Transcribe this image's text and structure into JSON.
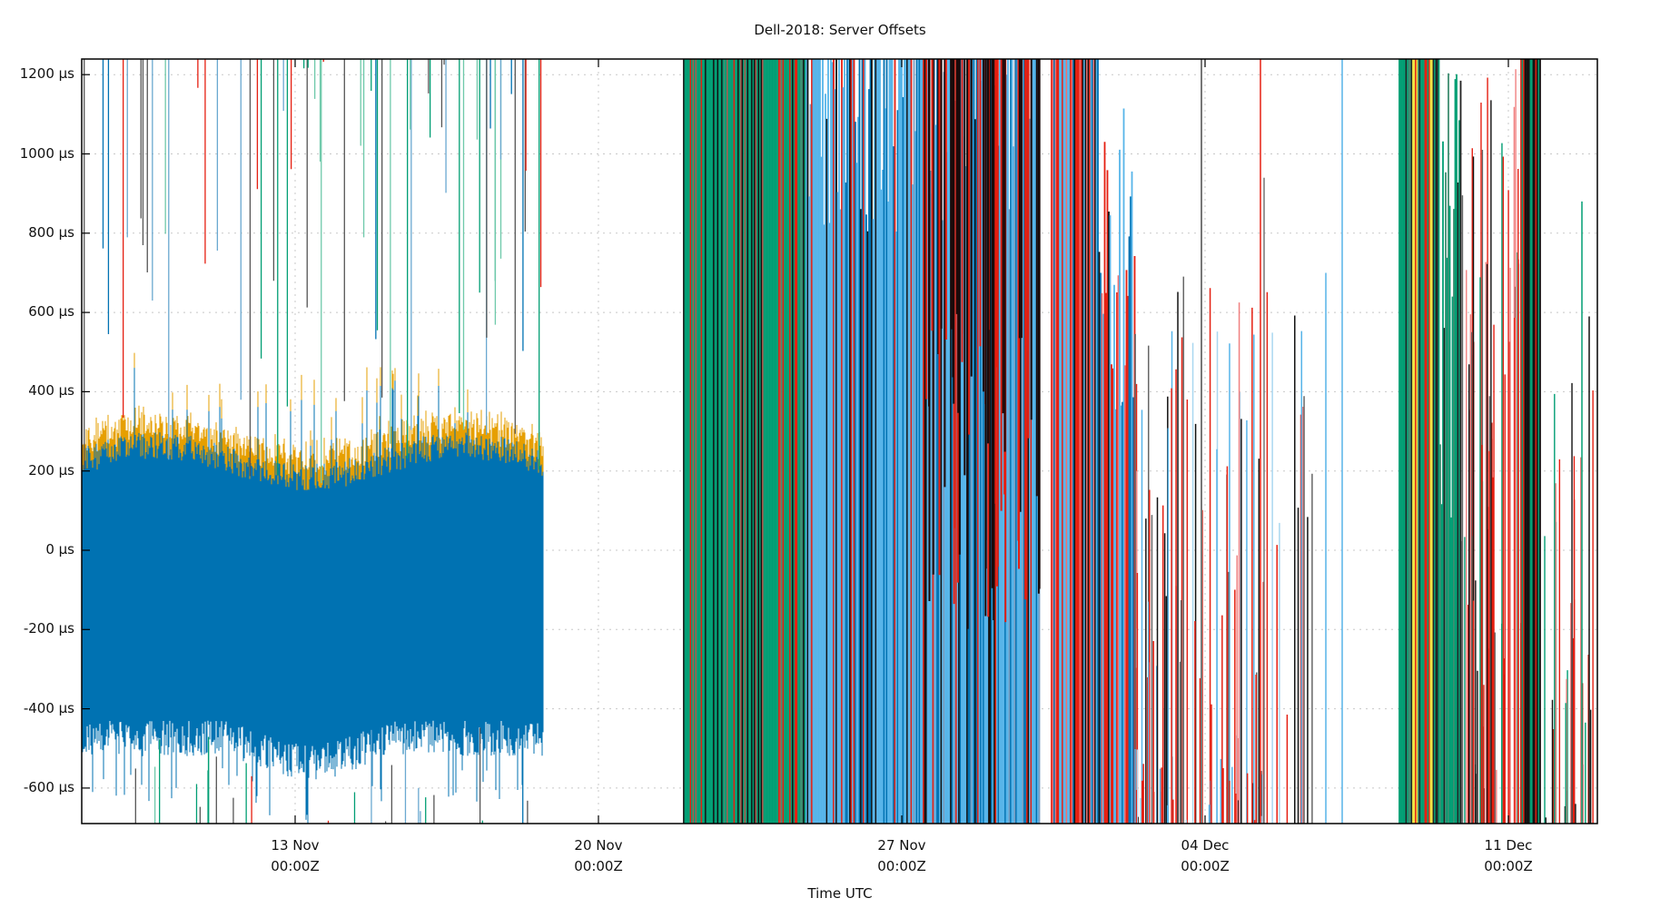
{
  "chart_data": {
    "type": "line",
    "title": "Dell-2018: Server Offsets",
    "xlabel": "Time UTC",
    "ylabel": "",
    "ylim": [
      -690,
      1240
    ],
    "y_unit": "µs",
    "y_ticks": [
      {
        "value": 1200,
        "label": "1200 µs"
      },
      {
        "value": 1000,
        "label": "1000 µs"
      },
      {
        "value": 800,
        "label": "800 µs"
      },
      {
        "value": 600,
        "label": "600 µs"
      },
      {
        "value": 400,
        "label": "400 µs"
      },
      {
        "value": 200,
        "label": "200 µs"
      },
      {
        "value": 0,
        "label": "0 µs"
      },
      {
        "value": -200,
        "label": "-200 µs"
      },
      {
        "value": -400,
        "label": "-400 µs"
      },
      {
        "value": -600,
        "label": "-600 µs"
      }
    ],
    "x_ticks": [
      {
        "date": "13 Nov",
        "time": "00:00Z"
      },
      {
        "date": "20 Nov",
        "time": "00:00Z"
      },
      {
        "date": "27 Nov",
        "time": "00:00Z"
      },
      {
        "date": "04 Dec",
        "time": "00:00Z"
      },
      {
        "date": "11 Dec",
        "time": "00:00Z"
      }
    ],
    "xlim": [
      "~09 Nov",
      "~14 Dec"
    ],
    "grid": true,
    "legend": "none",
    "series_colors": {
      "blue": "#0072b2",
      "orange": "#e69f00",
      "green": "#009e73",
      "light_blue": "#56b4e9",
      "red": "#e51e10",
      "black": "#000000",
      "yellow": "#f0e442"
    },
    "regions": [
      {
        "span": "~09 Nov – ~18 Nov",
        "description": "dense blue offsets ~-650 to +250 µs with orange upper envelope up to ~+500 µs; sparse green/red/gray spikes to top",
        "blue_range": [
          -650,
          250
        ],
        "orange_max": 500
      },
      {
        "span": "~18 Nov – ~22 Nov",
        "description": "no data gap"
      },
      {
        "span": "~22 Nov – ~25 Nov",
        "description": "dense green/red/black spikes spanning full y range"
      },
      {
        "span": "~25 Nov – ~02 Dec",
        "description": "dense light blue/blue with red and black spikes, full y range"
      },
      {
        "span": "~02 Dec – ~07 Dec",
        "description": "sparse red/black/light-blue spikes decreasing in density"
      },
      {
        "span": "~09 Dec – ~14 Dec",
        "description": "dense green/yellow/red spikes then sparse red/black/green"
      }
    ]
  }
}
